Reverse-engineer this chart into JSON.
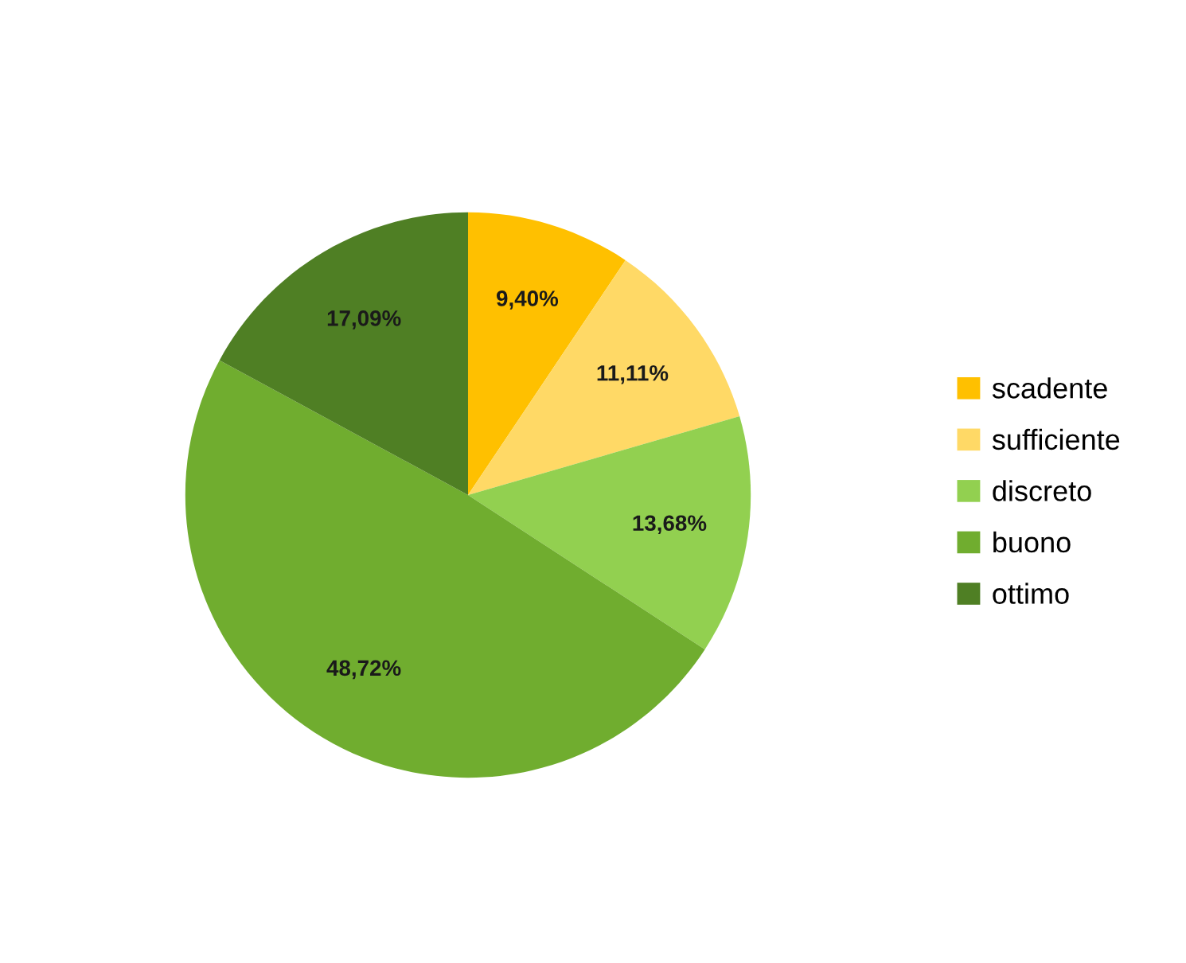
{
  "chart_data": {
    "type": "pie",
    "categories": [
      "scadente",
      "sufficiente",
      "discreto",
      "buono",
      "ottimo"
    ],
    "values": [
      9.4,
      11.11,
      13.68,
      48.72,
      17.09
    ],
    "value_labels": [
      "9,40%",
      "11,11%",
      "13,68%",
      "48,72%",
      "17,09%"
    ],
    "colors": [
      "#ffc000",
      "#ffd966",
      "#92d050",
      "#70ad2f",
      "#4f7f24"
    ],
    "legend": "right"
  }
}
